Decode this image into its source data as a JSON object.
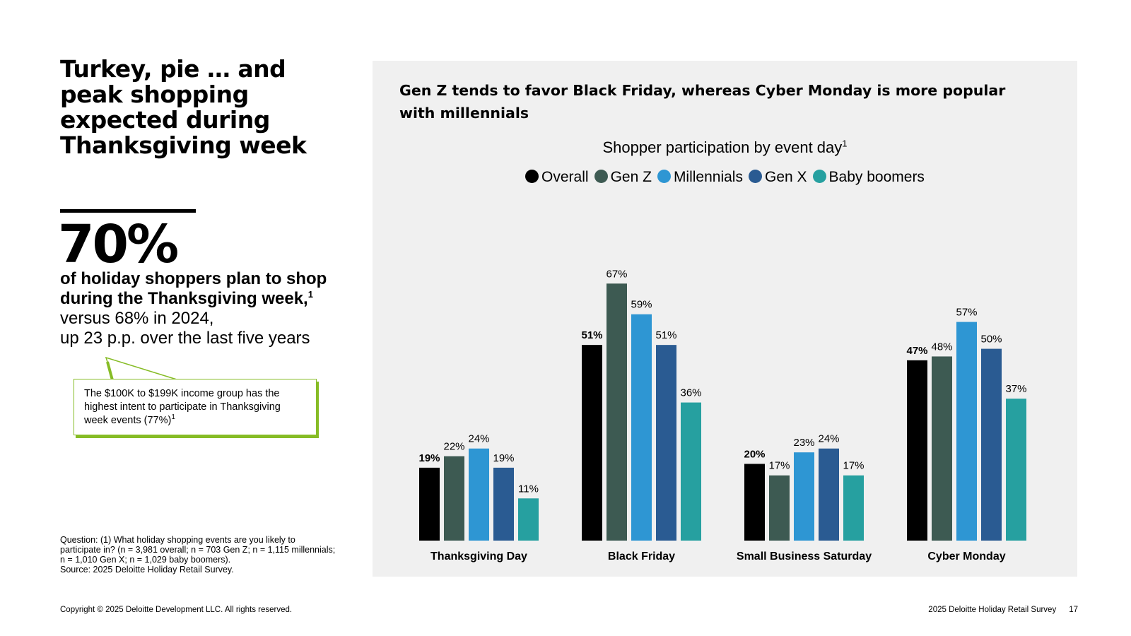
{
  "headline": "Turkey, pie … and peak shopping expected during Thanksgiving week",
  "stat": {
    "value": "70%",
    "line1": "of holiday shoppers plan to shop",
    "line2": "during the Thanksgiving week,",
    "line2_sup": "1",
    "line3": "versus 68% in 2024,",
    "line4": "up 23 p.p. over the last five years"
  },
  "callout": {
    "text": "The $100K to $199K income group has the highest intent to participate in Thanksgiving week events (77%)",
    "sup": "1"
  },
  "footnote": {
    "question": "Question: (1) What holiday shopping events are you likely to participate in? (n = 3,981 overall; n = 703 Gen Z; n = 1,115 millennials; n = 1,010 Gen X; n = 1,029 baby boomers).",
    "source": "Source: 2025 Deloitte Holiday Retail Survey."
  },
  "footer": {
    "copyright": "Copyright © 2025 Deloitte Development LLC. All rights reserved.",
    "report": "2025 Deloitte Holiday Retail Survey",
    "page": "17"
  },
  "chart_heading": "Gen Z tends to favor Black Friday, whereas Cyber Monday is more popular with millennials",
  "chart_data": {
    "type": "bar",
    "title": "Shopper participation by event day",
    "title_sup": "1",
    "categories": [
      "Thanksgiving Day",
      "Black Friday",
      "Small Business Saturday",
      "Cyber Monday"
    ],
    "series": [
      {
        "name": "Overall",
        "color": "#000000",
        "values": [
          19,
          51,
          20,
          47
        ]
      },
      {
        "name": "Gen Z",
        "color": "#3d5a52",
        "values": [
          22,
          67,
          17,
          48
        ]
      },
      {
        "name": "Millennials",
        "color": "#2e96d3",
        "values": [
          24,
          59,
          23,
          57
        ]
      },
      {
        "name": "Gen X",
        "color": "#2a5b92",
        "values": [
          19,
          51,
          24,
          50
        ]
      },
      {
        "name": "Baby boomers",
        "color": "#26a0a0",
        "values": [
          11,
          36,
          17,
          37
        ]
      }
    ],
    "value_suffix": "%",
    "ylim": [
      0,
      70
    ],
    "grid": false,
    "legend": "top-center",
    "xlabel": "",
    "ylabel": ""
  },
  "colors": {
    "accent_green": "#86bc25",
    "panel_bg": "#f0f0f0"
  }
}
